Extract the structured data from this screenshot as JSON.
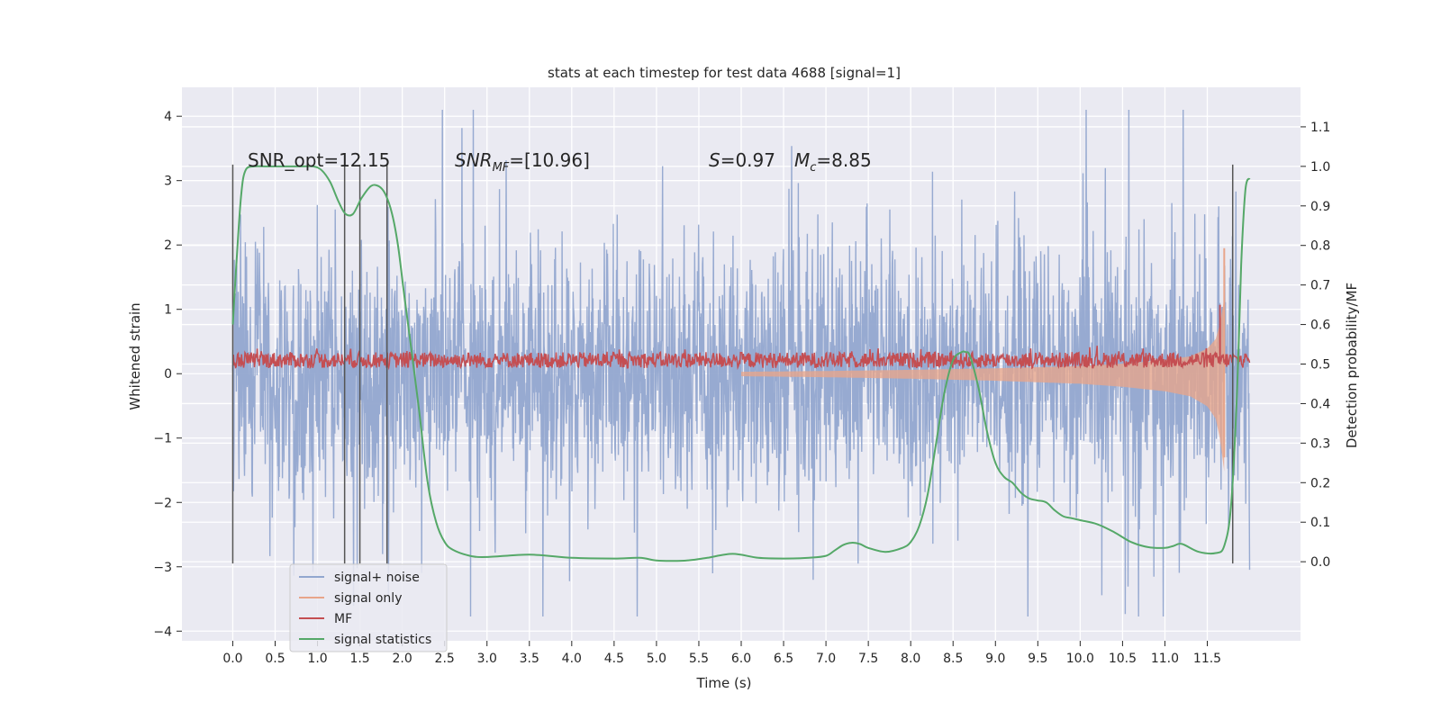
{
  "chart_data": {
    "type": "line",
    "title": "stats at each timestep for test data 4688 [signal=1]",
    "xlabel": "Time (s)",
    "ylabel": "Whitened strain",
    "ylabel_right": "Detection probability/MF",
    "xlim": [
      -0.6,
      12.6
    ],
    "ylim": [
      -4.15,
      4.45
    ],
    "ylim_right": [
      -0.2,
      1.2
    ],
    "x_ticks": [
      0.0,
      0.5,
      1.0,
      1.5,
      2.0,
      2.5,
      3.0,
      3.5,
      4.0,
      4.5,
      5.0,
      5.5,
      6.0,
      6.5,
      7.0,
      7.5,
      8.0,
      8.5,
      9.0,
      9.5,
      10.0,
      10.5,
      11.0,
      11.5
    ],
    "x_tick_labels": [
      "0.0",
      "0.5",
      "1.0",
      "1.5",
      "2.0",
      "2.5",
      "3.0",
      "3.5",
      "4.0",
      "4.5",
      "5.0",
      "5.5",
      "6.0",
      "6.5",
      "7.0",
      "7.5",
      "8.0",
      "8.5",
      "9.0",
      "9.5",
      "10.0",
      "10.5",
      "11.0",
      "11.5"
    ],
    "y_ticks": [
      4,
      3,
      2,
      1,
      0,
      -1,
      -2,
      -3,
      -4
    ],
    "y_tick_labels": [
      "4",
      "3",
      "2",
      "1",
      "0",
      "−1",
      "−2",
      "−3",
      "−4"
    ],
    "y_right_ticks": [
      1.1,
      1.0,
      0.9,
      0.8,
      0.7,
      0.6,
      0.5,
      0.4,
      0.3,
      0.2,
      0.1,
      0.0
    ],
    "y_right_tick_labels": [
      "1.1",
      "1.0",
      "0.9",
      "0.8",
      "0.7",
      "0.6",
      "0.5",
      "0.4",
      "0.3",
      "0.2",
      "0.1",
      "0.0"
    ],
    "grid": true,
    "legend_position": "lower-left",
    "annotations": {
      "snr_opt": "SNR_opt=12.15",
      "snr_mf_base": "SNR",
      "snr_mf_sub": "MF",
      "snr_mf_value": "=[10.96]",
      "s_symbol": "S",
      "s_value": "=0.97",
      "mc_base": "M",
      "mc_sub": "c",
      "mc_value": "=8.85"
    },
    "markers_x": [
      0.0,
      1.32,
      1.5,
      1.82,
      11.8
    ],
    "markers_ylim": [
      -2.95,
      3.25
    ],
    "series": [
      {
        "name": "signal+ noise",
        "color": "#92a7cf",
        "axis": "left",
        "x_range": [
          0.0,
          12.0
        ],
        "typical_amplitude": 1.8,
        "max_amplitude": 4.1
      },
      {
        "name": "signal only",
        "color": "#e8a58a",
        "axis": "left",
        "x": [
          0,
          3,
          6,
          7,
          8,
          9,
          10,
          10.5,
          11,
          11.3,
          11.5,
          11.6,
          11.65,
          11.7
        ],
        "envelope": [
          0.02,
          0.03,
          0.05,
          0.07,
          0.1,
          0.14,
          0.2,
          0.26,
          0.35,
          0.45,
          0.65,
          0.9,
          1.3,
          1.95
        ]
      },
      {
        "name": "MF",
        "color": "#c44e52",
        "axis": "right",
        "baseline": 0.5,
        "spread": [
          0.49,
          0.53
        ],
        "peak_x": 11.65,
        "peak_value": 0.65
      },
      {
        "name": "signal statistics",
        "color": "#55a868",
        "axis": "right",
        "x": [
          0.0,
          0.05,
          0.1,
          0.15,
          0.25,
          0.4,
          0.6,
          0.8,
          0.95,
          1.05,
          1.15,
          1.25,
          1.33,
          1.42,
          1.52,
          1.63,
          1.72,
          1.8,
          1.88,
          1.95,
          2.02,
          2.1,
          2.2,
          2.3,
          2.4,
          2.5,
          2.6,
          2.8,
          3.0,
          3.5,
          4.0,
          4.5,
          4.8,
          5.0,
          5.2,
          5.4,
          5.6,
          5.9,
          6.2,
          6.5,
          6.8,
          7.0,
          7.1,
          7.2,
          7.3,
          7.4,
          7.5,
          7.7,
          7.9,
          8.0,
          8.1,
          8.2,
          8.3,
          8.4,
          8.5,
          8.6,
          8.65,
          8.7,
          8.8,
          8.9,
          9.0,
          9.1,
          9.2,
          9.3,
          9.4,
          9.5,
          9.6,
          9.7,
          9.8,
          9.9,
          10.0,
          10.2,
          10.4,
          10.6,
          10.8,
          11.0,
          11.1,
          11.2,
          11.4,
          11.6,
          11.7,
          11.78,
          11.85,
          11.9,
          11.95,
          12.0
        ],
        "y": [
          0.6,
          0.78,
          0.93,
          0.99,
          1.0,
          1.0,
          1.0,
          1.0,
          1.0,
          0.99,
          0.96,
          0.91,
          0.88,
          0.88,
          0.92,
          0.95,
          0.95,
          0.93,
          0.88,
          0.8,
          0.68,
          0.55,
          0.38,
          0.2,
          0.1,
          0.05,
          0.03,
          0.015,
          0.012,
          0.018,
          0.01,
          0.008,
          0.01,
          0.003,
          0.002,
          0.004,
          0.01,
          0.02,
          0.01,
          0.008,
          0.01,
          0.015,
          0.028,
          0.042,
          0.048,
          0.045,
          0.035,
          0.025,
          0.035,
          0.05,
          0.09,
          0.17,
          0.3,
          0.43,
          0.51,
          0.53,
          0.53,
          0.52,
          0.44,
          0.33,
          0.25,
          0.215,
          0.2,
          0.175,
          0.16,
          0.155,
          0.15,
          0.13,
          0.115,
          0.11,
          0.105,
          0.095,
          0.075,
          0.05,
          0.037,
          0.035,
          0.04,
          0.045,
          0.025,
          0.022,
          0.04,
          0.14,
          0.42,
          0.75,
          0.94,
          0.97
        ]
      }
    ]
  }
}
